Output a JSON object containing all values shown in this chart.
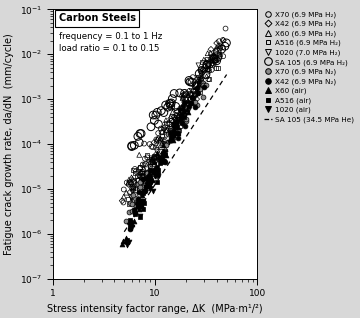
{
  "title": "Carbon Steels",
  "subtitle": "frequency = 0.1 to 1 Hz\nload ratio = 0.1 to 0.15",
  "xlabel": "Stress intensity factor range, ΔK  (MPa·m¹ᐟ²)",
  "ylabel": "Fatigue crack growth rate, da/dN  (mm/cycle)",
  "xlim": [
    1,
    100
  ],
  "ylim": [
    1e-07,
    0.1
  ],
  "fig_facecolor": "#d8d8d8",
  "plot_facecolor": "#ffffff",
  "legend_labels": [
    "X70 (6.9 MPa H₂)",
    "X42 (6.9 MPa H₂)",
    "X60 (6.9 MPa H₂)",
    "A516 (6.9 MPa H₂)",
    "1020 (7.0 MPa H₂)",
    "SA 105 (6.9 MPa H₂)",
    "X70 (6.9 MPa N₂)",
    "X42 (6.9 MPa N₂)",
    "X60 (air)",
    "A516 (air)",
    "1020 (air)",
    "SA 105 (34.5 MPa He)"
  ]
}
